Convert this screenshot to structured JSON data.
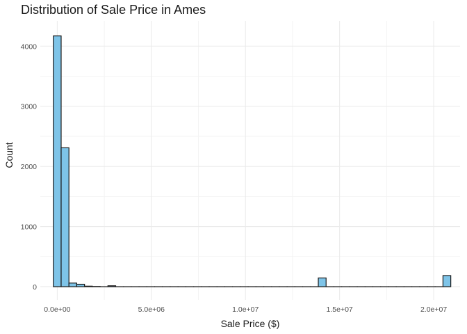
{
  "chart_data": {
    "type": "bar",
    "title": "Distribution of Sale Price in Ames",
    "xlabel": "Sale Price ($)",
    "ylabel": "Count",
    "xlim": [
      -900000,
      21400000
    ],
    "ylim": [
      -220,
      4420
    ],
    "x_ticks": [
      0,
      5000000,
      10000000,
      15000000,
      20000000
    ],
    "x_tick_labels": [
      "0.0e+00",
      "5.0e+06",
      "1.0e+07",
      "1.5e+07",
      "2.0e+07"
    ],
    "y_ticks": [
      0,
      1000,
      2000,
      3000,
      4000
    ],
    "y_tick_labels": [
      "0",
      "1000",
      "2000",
      "3000",
      "4000"
    ],
    "grid": true,
    "bin_width": 414000,
    "bins": [
      {
        "x": 0,
        "count": 4170
      },
      {
        "x": 414000,
        "count": 2310
      },
      {
        "x": 828000,
        "count": 60
      },
      {
        "x": 1242000,
        "count": 40
      },
      {
        "x": 1656000,
        "count": 8
      },
      {
        "x": 2070000,
        "count": 3
      },
      {
        "x": 2898000,
        "count": 15
      },
      {
        "x": 14178000,
        "count": 145
      },
      {
        "x": 20802000,
        "count": 185
      }
    ],
    "bar_fill": "#7ec4e8",
    "bar_stroke": "#1a1a1a"
  }
}
